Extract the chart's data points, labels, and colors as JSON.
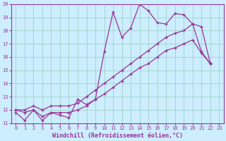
{
  "xlabel": "Windchill (Refroidissement éolien,°C)",
  "bg_color": "#cceeff",
  "line_color": "#993399",
  "xlim": [
    -0.5,
    23.5
  ],
  "ylim": [
    11,
    20
  ],
  "xticks": [
    0,
    1,
    2,
    3,
    4,
    5,
    6,
    7,
    8,
    9,
    10,
    11,
    12,
    13,
    14,
    15,
    16,
    17,
    18,
    19,
    20,
    21,
    22,
    23
  ],
  "yticks": [
    11,
    12,
    13,
    14,
    15,
    16,
    17,
    18,
    19,
    20
  ],
  "line1_x": [
    0,
    1,
    2,
    3,
    4,
    5,
    6,
    7,
    8,
    9,
    10,
    11,
    12,
    13,
    14,
    15,
    16,
    17,
    18,
    19,
    20,
    21,
    22
  ],
  "line1_y": [
    11.8,
    11.2,
    12.0,
    11.2,
    11.8,
    11.6,
    11.4,
    12.8,
    12.4,
    12.8,
    16.4,
    19.4,
    17.5,
    18.2,
    20.0,
    19.5,
    18.6,
    18.5,
    19.3,
    19.2,
    18.5,
    16.4,
    15.5
  ],
  "line2_x": [
    0,
    1,
    2,
    3,
    4,
    5,
    6,
    7,
    8,
    9,
    10,
    11,
    12,
    13,
    14,
    15,
    16,
    17,
    18,
    19,
    20,
    21,
    22
  ],
  "line2_y": [
    12.0,
    12.0,
    12.3,
    12.0,
    12.3,
    12.3,
    12.3,
    12.5,
    13.0,
    13.5,
    14.0,
    14.5,
    15.0,
    15.5,
    16.0,
    16.5,
    17.0,
    17.5,
    17.8,
    18.0,
    18.5,
    18.3,
    15.5
  ],
  "line3_x": [
    0,
    1,
    2,
    3,
    4,
    5,
    6,
    7,
    8,
    9,
    10,
    11,
    12,
    13,
    14,
    15,
    16,
    17,
    18,
    19,
    20,
    21,
    22
  ],
  "line3_y": [
    12.0,
    11.8,
    12.0,
    11.5,
    11.8,
    11.8,
    11.8,
    12.0,
    12.3,
    12.8,
    13.2,
    13.7,
    14.2,
    14.7,
    15.2,
    15.5,
    16.0,
    16.5,
    16.7,
    17.0,
    17.3,
    16.3,
    15.5
  ],
  "grid_color": "#99ccbb",
  "marker": "+",
  "markersize": 3,
  "linewidth": 0.9,
  "xlabel_fontsize": 6,
  "tick_fontsize": 5,
  "figwidth": 3.2,
  "figheight": 2.0,
  "dpi": 100
}
